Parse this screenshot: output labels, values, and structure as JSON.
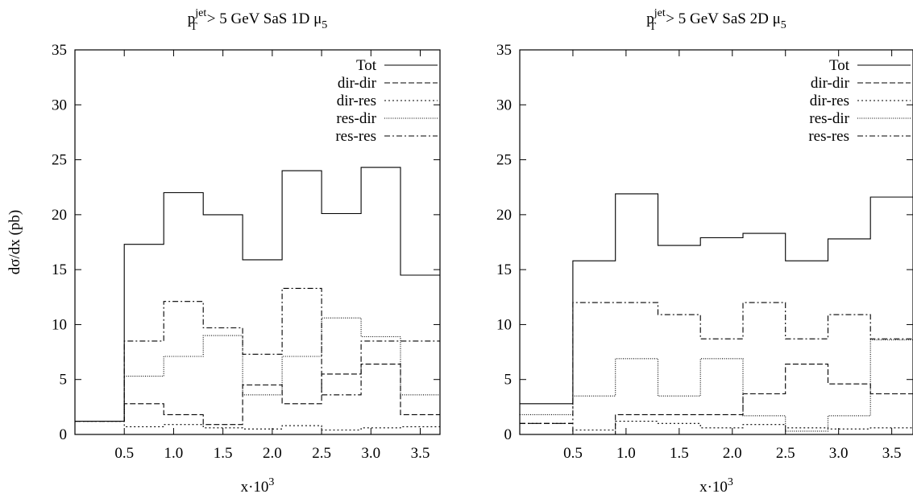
{
  "chart_data": [
    {
      "type": "line",
      "title": {
        "pt": "p",
        "pt_sup": "jet",
        "pt_sub": "T",
        "rest": "> 5 GeV   SaS 1D   μ",
        "mu_sub": "5"
      },
      "xlabel": {
        "base": "x·10",
        "sup": "3"
      },
      "ylabel": "dσ/dx (pb)",
      "xlim": [
        0.0,
        3.7
      ],
      "ylim": [
        0,
        35
      ],
      "x_ticks": [
        "0.5",
        "1.0",
        "1.5",
        "2.0",
        "2.5",
        "3.0",
        "3.5"
      ],
      "y_ticks": [
        "0",
        "5",
        "10",
        "15",
        "20",
        "25",
        "30",
        "35"
      ],
      "bin_edges": [
        0.0,
        0.5,
        0.9,
        1.3,
        1.7,
        2.1,
        2.5,
        2.9,
        3.3,
        3.7
      ],
      "legend_position": "top-right",
      "series": [
        {
          "name": "Tot",
          "style": "solid",
          "values": [
            1.2,
            17.3,
            22.0,
            20.0,
            15.9,
            24.0,
            20.1,
            24.3,
            14.5
          ]
        },
        {
          "name": "dir-dir",
          "style": "dashed",
          "values": [
            1.2,
            2.8,
            1.8,
            0.9,
            4.5,
            2.8,
            5.5,
            6.4,
            1.8
          ]
        },
        {
          "name": "dir-res",
          "style": "dotted",
          "values": [
            1.2,
            0.7,
            0.9,
            0.6,
            0.5,
            0.8,
            0.4,
            0.6,
            0.7
          ]
        },
        {
          "name": "res-dir",
          "style": "fine-dotted",
          "values": [
            1.2,
            5.3,
            7.1,
            9.0,
            3.6,
            7.1,
            10.6,
            8.9,
            3.6
          ]
        },
        {
          "name": "res-res",
          "style": "dash-dot",
          "values": [
            1.2,
            8.5,
            12.1,
            9.7,
            7.3,
            13.3,
            3.6,
            8.5,
            8.5
          ]
        }
      ]
    },
    {
      "type": "line",
      "title": {
        "pt": "p",
        "pt_sup": "jet",
        "pt_sub": "T",
        "rest": "> 5 GeV   SaS 2D   μ",
        "mu_sub": "5"
      },
      "xlabel": {
        "base": "x·10",
        "sup": "3"
      },
      "ylabel": "",
      "xlim": [
        0.0,
        3.7
      ],
      "ylim": [
        0,
        35
      ],
      "x_ticks": [
        "0.5",
        "1.0",
        "1.5",
        "2.0",
        "2.5",
        "3.0",
        "3.5"
      ],
      "y_ticks": [
        "0",
        "5",
        "10",
        "15",
        "20",
        "25",
        "30",
        "35"
      ],
      "bin_edges": [
        0.0,
        0.5,
        0.9,
        1.3,
        1.7,
        2.1,
        2.5,
        2.9,
        3.3,
        3.7
      ],
      "legend_position": "top-right",
      "series": [
        {
          "name": "Tot",
          "style": "solid",
          "values": [
            2.8,
            15.8,
            21.9,
            17.2,
            17.9,
            18.3,
            15.8,
            17.8,
            21.6
          ]
        },
        {
          "name": "dir-dir",
          "style": "dashed",
          "values": [
            1.0,
            0.0,
            1.8,
            1.8,
            1.8,
            3.7,
            6.4,
            4.6,
            3.7
          ]
        },
        {
          "name": "dir-res",
          "style": "dotted",
          "values": [
            0.0,
            0.4,
            1.2,
            1.0,
            0.6,
            0.9,
            0.6,
            0.5,
            0.6
          ]
        },
        {
          "name": "res-dir",
          "style": "fine-dotted",
          "values": [
            1.8,
            3.5,
            6.9,
            3.5,
            6.9,
            1.7,
            0.3,
            1.7,
            8.6
          ]
        },
        {
          "name": "res-res",
          "style": "dash-dot",
          "values": [
            1.0,
            12.0,
            12.0,
            10.9,
            8.7,
            12.0,
            8.7,
            10.9,
            8.7
          ]
        }
      ]
    }
  ]
}
